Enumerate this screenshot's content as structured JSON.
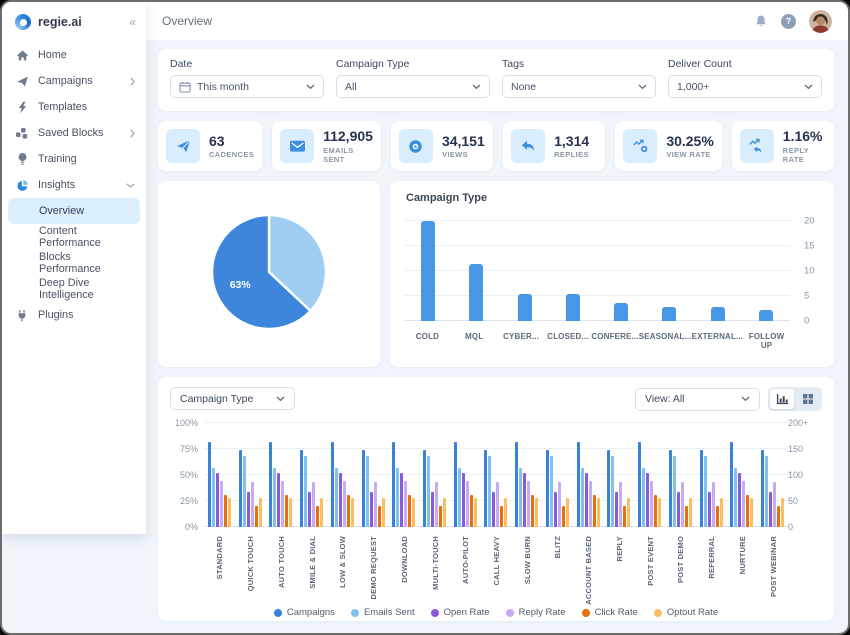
{
  "header": {
    "title": "Overview",
    "help_glyph": "?",
    "icons": [
      "bell-icon",
      "help-icon",
      "avatar"
    ]
  },
  "sidebar": {
    "logo_text": "regie.ai",
    "collapse_icon": "«",
    "items": [
      {
        "label": "Home",
        "icon": "home"
      },
      {
        "label": "Campaigns",
        "icon": "paper-plane",
        "chevron": "right"
      },
      {
        "label": "Templates",
        "icon": "lightning"
      },
      {
        "label": "Saved Blocks",
        "icon": "blocks",
        "chevron": "right"
      },
      {
        "label": "Training",
        "icon": "lightbulb"
      },
      {
        "label": "Insights",
        "icon": "pie",
        "chevron": "down"
      },
      {
        "label": "Overview",
        "sub": true,
        "active": true
      },
      {
        "label": "Content Performance",
        "sub": true
      },
      {
        "label": "Blocks Performance",
        "sub": true
      },
      {
        "label": "Deep Dive Intelligence",
        "sub": true
      },
      {
        "label": "Plugins",
        "icon": "plug"
      }
    ]
  },
  "filters": [
    {
      "label": "Date",
      "value": "This month",
      "icon": "calendar"
    },
    {
      "label": "Campaign Type",
      "value": "All"
    },
    {
      "label": "Tags",
      "value": "None"
    },
    {
      "label": "Deliver Count",
      "value": "1,000+"
    }
  ],
  "stats": [
    {
      "value": "63",
      "label": "CADENCES",
      "icon": "stat-plane"
    },
    {
      "value": "112,905",
      "label": "EMAILS SENT",
      "icon": "stat-envelope"
    },
    {
      "value": "34,151",
      "label": "VIEWS",
      "icon": "stat-eye"
    },
    {
      "value": "1,314",
      "label": "REPLIES",
      "icon": "stat-reply"
    },
    {
      "value": "30.25%",
      "label": "VIEW RATE",
      "icon": "stat-view-rate"
    },
    {
      "value": "1.16%",
      "label": "REPLY RATE",
      "icon": "stat-reply-rate"
    }
  ],
  "bottom_controls": {
    "category_dropdown": "Campaign Type",
    "view_dropdown": "View: All"
  },
  "chart_data": [
    {
      "type": "pie",
      "title": "",
      "slices": [
        {
          "label": "",
          "value": 37,
          "color": "#9FCDF3"
        },
        {
          "label": "63%",
          "value": 63,
          "color": "#3D86DB"
        }
      ],
      "start_angle_deg": 0,
      "labeled_slice": "63%"
    },
    {
      "type": "bar",
      "title": "Campaign Type",
      "categories": [
        "COLD",
        "MQL",
        "CYBER...",
        "CLOSED...",
        "CONFERE...",
        "SEASONAL...",
        "EXTERNAL...",
        "FOLLOW UP"
      ],
      "values": [
        20,
        11.5,
        5.5,
        5.5,
        3.7,
        2.8,
        2.8,
        2.3
      ],
      "bar_color": "#4897E5",
      "ylim": [
        0,
        20
      ],
      "yticks": [
        0,
        5,
        10,
        15,
        20
      ],
      "axis_side": "right",
      "grid": true
    },
    {
      "type": "bar",
      "title": "",
      "categories": [
        "STANDARD",
        "QUICK TOUCH",
        "AUTO TOUCH",
        "SMILE & DIAL",
        "LOW & SLOW",
        "DEMO REQUEST",
        "DOWNLOAD",
        "MULTI-TOUCH",
        "AUTO-PILOT",
        "CALL HEAVY",
        "SLOW BURN",
        "BLITZ",
        "ACCOUNT BASED",
        "REPLY",
        "POST EVENT",
        "POST DEMO",
        "REFERRAL",
        "NURTURE",
        "POST WEBINAR"
      ],
      "series": [
        {
          "name": "Campaigns",
          "color": "#3A82D8",
          "values": [
            82,
            74,
            82,
            74,
            82,
            74,
            82,
            74,
            82,
            74,
            82,
            74,
            82,
            74,
            82,
            74,
            74,
            82,
            74
          ]
        },
        {
          "name": "Emails Sent",
          "color": "#7FC2EE",
          "values": [
            57,
            68,
            57,
            68,
            57,
            68,
            57,
            68,
            57,
            68,
            57,
            68,
            57,
            68,
            57,
            68,
            68,
            57,
            68
          ]
        },
        {
          "name": "Open Rate",
          "color": "#8A5BD6",
          "values": [
            52,
            34,
            52,
            34,
            52,
            34,
            52,
            34,
            52,
            34,
            52,
            34,
            52,
            34,
            52,
            34,
            34,
            52,
            34
          ]
        },
        {
          "name": "Reply Rate",
          "color": "#C6ACF0",
          "values": [
            44,
            43,
            44,
            43,
            44,
            43,
            44,
            43,
            44,
            43,
            44,
            43,
            44,
            43,
            44,
            43,
            43,
            44,
            43
          ]
        },
        {
          "name": "Click Rate",
          "color": "#E7700D",
          "values": [
            31,
            20,
            31,
            20,
            31,
            20,
            31,
            20,
            31,
            20,
            31,
            20,
            31,
            20,
            31,
            20,
            20,
            31,
            20
          ]
        },
        {
          "name": "Optout Rate",
          "color": "#FBBE61",
          "values": [
            28,
            28,
            28,
            28,
            28,
            28,
            28,
            28,
            28,
            28,
            28,
            28,
            28,
            28,
            28,
            28,
            28,
            28,
            28
          ]
        }
      ],
      "ylim": [
        0,
        100
      ],
      "left_axis_ticks": [
        "0%",
        "25%",
        "50%",
        "75%",
        "100%"
      ],
      "right_axis_ticks": [
        "0",
        "50",
        "100",
        "150",
        "200+"
      ],
      "grid": true,
      "legend_position": "bottom"
    }
  ],
  "colors": {
    "accent": "#2E86DE",
    "page_bg": "#F0F5FB",
    "card_bg": "#FFFFFF",
    "active_item_bg": "#DCEFFE",
    "stat_icon_bg": "#D9EDFC",
    "stat_icon": "#3E8EDE",
    "gridline": "#EAF0F6"
  }
}
